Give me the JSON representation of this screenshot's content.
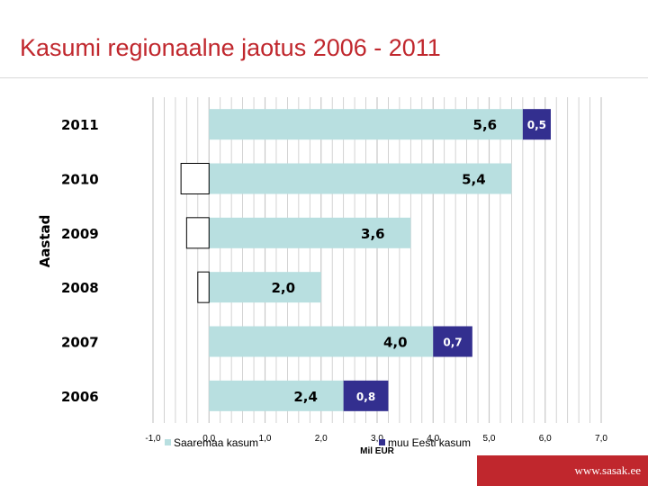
{
  "header": {
    "title": "Kasumi regionaalne jaotus 2006 - 2011"
  },
  "footer": {
    "url": "www.sasak.ee"
  },
  "colors": {
    "title": "#c0272d",
    "saaremaa": "#b8dfe0",
    "muu": "#332f8f",
    "grid": "#c8c8c8",
    "footer": "#c0272d"
  },
  "chart_data": {
    "type": "bar",
    "orientation": "horizontal",
    "stacked": true,
    "categories": [
      "2011",
      "2010",
      "2009",
      "2008",
      "2007",
      "2006"
    ],
    "series": [
      {
        "name": "Saaremaa kasum",
        "values": [
          5.6,
          5.4,
          3.6,
          2.0,
          4.0,
          2.4
        ],
        "labels": [
          "5,6",
          "5,4",
          "3,6",
          "2,0",
          "4,0",
          "2,4"
        ]
      },
      {
        "name": "muu Eesti kasum",
        "values": [
          0.5,
          -0.5,
          -0.4,
          -0.2,
          0.7,
          0.8
        ],
        "labels": [
          "0,5",
          "",
          "",
          "",
          "0,7",
          "0,8"
        ]
      }
    ],
    "xlim": [
      -1.0,
      7.0
    ],
    "xticks": [
      "-1,0",
      "0,0",
      "1,0",
      "2,0",
      "3,0",
      "4,0",
      "5,0",
      "6,0",
      "7,0"
    ],
    "xlabel": "Mil EUR",
    "ylabel": "Aastad",
    "grid": "vertical",
    "legend": "bottom"
  }
}
